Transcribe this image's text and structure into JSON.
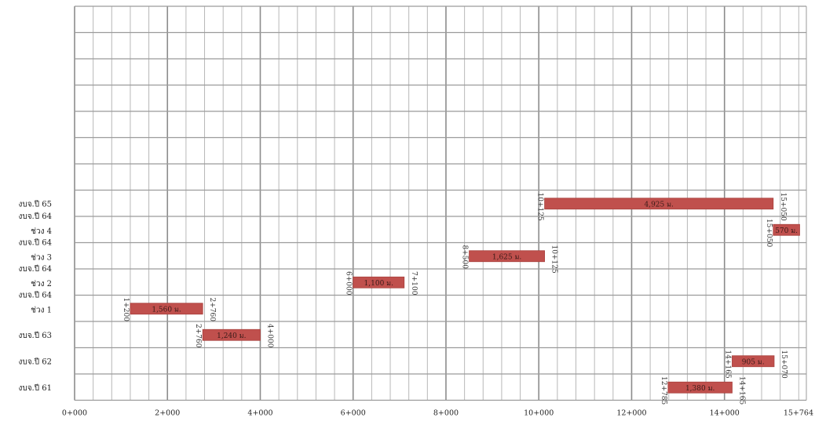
{
  "chart_data": {
    "type": "bar",
    "subtype": "gantt",
    "title": "",
    "xlabel": "",
    "ylabel": "",
    "xlim": [
      0,
      15764
    ],
    "x_ticks": [
      {
        "value": 0,
        "label": "0+000"
      },
      {
        "value": 2000,
        "label": "2+000"
      },
      {
        "value": 4000,
        "label": "4+000"
      },
      {
        "value": 6000,
        "label": "6+000"
      },
      {
        "value": 8000,
        "label": "8+000"
      },
      {
        "value": 10000,
        "label": "10+000"
      },
      {
        "value": 12000,
        "label": "12+000"
      },
      {
        "value": 14000,
        "label": "14+000"
      },
      {
        "value": 15764,
        "label": "15+764"
      }
    ],
    "grid": true,
    "bar_color": "#c0504d",
    "grid_color": "#9b9b9b",
    "row_count": 15,
    "rows": [
      {
        "index": 0,
        "label": ""
      },
      {
        "index": 1,
        "label": ""
      },
      {
        "index": 2,
        "label": ""
      },
      {
        "index": 3,
        "label": ""
      },
      {
        "index": 4,
        "label": ""
      },
      {
        "index": 5,
        "label": ""
      },
      {
        "index": 6,
        "label": ""
      },
      {
        "index": 7,
        "label": "งบจ.ปี 65"
      },
      {
        "index": 8,
        "label": "งบจ.ปี 64\nช่วง 4"
      },
      {
        "index": 9,
        "label": "งบจ.ปี 64\nช่วง 3"
      },
      {
        "index": 10,
        "label": "งบจ.ปี 64\nช่วง 2"
      },
      {
        "index": 11,
        "label": "งบจ.ปี 64\nช่วง 1"
      },
      {
        "index": 12,
        "label": "งบจ.ปี 63"
      },
      {
        "index": 13,
        "label": "งบจ.ปี 62"
      },
      {
        "index": 14,
        "label": "งบจ.ปี 61"
      }
    ],
    "series": [
      {
        "row": 7,
        "start": 10125,
        "end": 15050,
        "start_label": "10+125",
        "end_label": "15+050",
        "length_label": "4,925 ม."
      },
      {
        "row": 8,
        "start": 15050,
        "end": 15620,
        "start_label": "15+050",
        "end_label": "",
        "length_label": "570 ม."
      },
      {
        "row": 9,
        "start": 8500,
        "end": 10125,
        "start_label": "8+500",
        "end_label": "10+125",
        "length_label": "1,625 ม."
      },
      {
        "row": 10,
        "start": 6000,
        "end": 7100,
        "start_label": "6+000",
        "end_label": "7+100",
        "length_label": "1,100 ม."
      },
      {
        "row": 11,
        "start": 1200,
        "end": 2760,
        "start_label": "1+200",
        "end_label": "2+760",
        "length_label": "1,560 ม."
      },
      {
        "row": 12,
        "start": 2760,
        "end": 4000,
        "start_label": "2+760",
        "end_label": "4+000",
        "length_label": "1,240 ม."
      },
      {
        "row": 13,
        "start": 14165,
        "end": 15070,
        "start_label": "14+165",
        "end_label": "15+070",
        "length_label": "905 ม."
      },
      {
        "row": 14,
        "start": 12785,
        "end": 14165,
        "start_label": "12+785",
        "end_label": "14+165",
        "length_label": "1,380 ม."
      }
    ]
  }
}
